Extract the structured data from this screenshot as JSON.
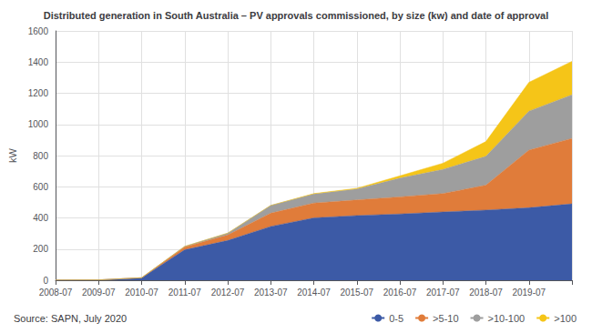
{
  "chart_data": {
    "type": "area",
    "stacked": true,
    "title": "Distributed generation in South Australia – PV approvals commissioned, by size (kw) and date of approval",
    "ylabel": "kW",
    "source": "Source: SAPN, July 2020",
    "categories": [
      "2008-07",
      "2009-07",
      "2010-07",
      "2011-07",
      "2012-07",
      "2013-07",
      "2014-07",
      "2015-07",
      "2016-07",
      "2017-07",
      "2018-07",
      "2019-07",
      null
    ],
    "series": [
      {
        "name": "0-5",
        "color": "#3c5aa6",
        "values": [
          1,
          2,
          15,
          195,
          255,
          345,
          400,
          415,
          425,
          438,
          450,
          465,
          490
        ]
      },
      {
        "name": ">5-10",
        "color": "#e07c3a",
        "values": [
          0,
          0,
          1,
          18,
          35,
          85,
          95,
          100,
          110,
          118,
          160,
          370,
          420
        ]
      },
      {
        "name": ">10-100",
        "color": "#9e9e9e",
        "values": [
          0,
          0,
          0,
          4,
          12,
          50,
          58,
          70,
          120,
          155,
          185,
          250,
          280
        ]
      },
      {
        "name": ">100",
        "color": "#f5c518",
        "values": [
          0,
          0,
          0,
          0,
          0,
          0,
          3,
          5,
          15,
          40,
          95,
          185,
          215
        ]
      }
    ],
    "ylim": [
      0,
      1600
    ],
    "yticks": [
      0,
      200,
      400,
      600,
      800,
      1000,
      1200,
      1400,
      1600
    ],
    "grid": true,
    "legend": "bottom right"
  }
}
